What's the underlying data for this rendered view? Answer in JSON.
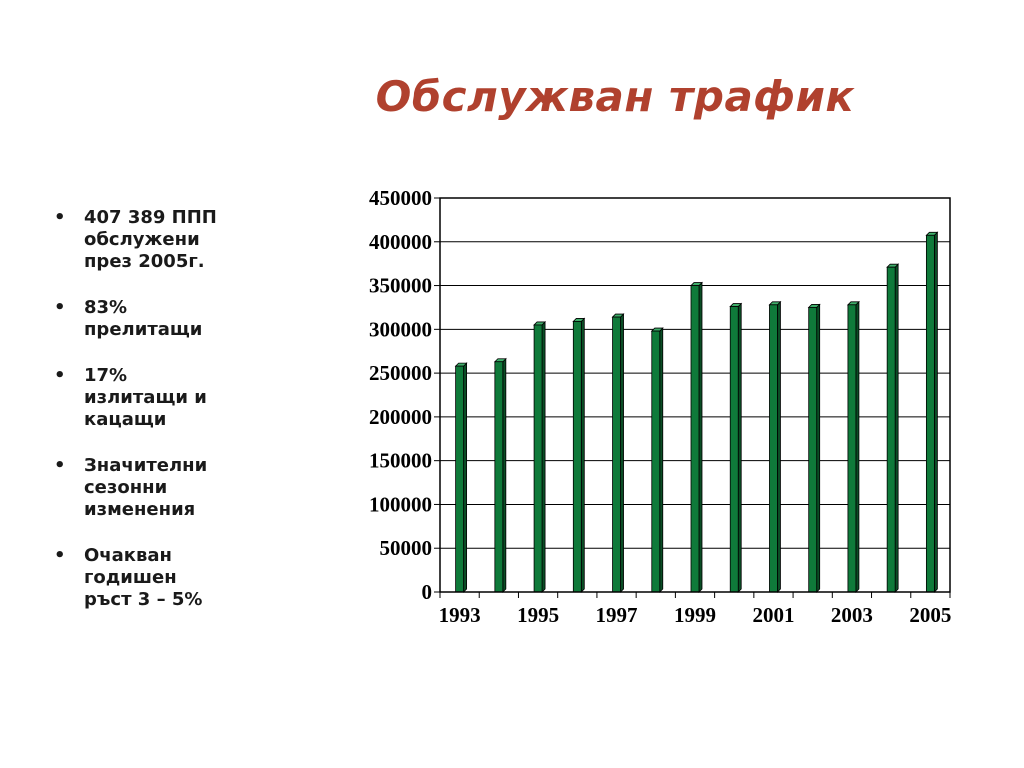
{
  "title": "Обслужван трафик",
  "bullets": [
    "407 389 ППП\nобслужени\nпрез 2005г.",
    "83%\nпрелитащи",
    "17%\nизлитащи и\nкацащи",
    "Значителни\nсезонни\nизменения",
    "Очакван\nгодишен\nръст 3 – 5%"
  ],
  "chart_data": {
    "type": "bar",
    "title": "",
    "xlabel": "",
    "ylabel": "",
    "categories": [
      "1993",
      "1994",
      "1995",
      "1996",
      "1997",
      "1998",
      "1999",
      "2000",
      "2001",
      "2002",
      "2003",
      "2004",
      "2005"
    ],
    "x_tick_labels": [
      "1993",
      "1995",
      "1997",
      "1999",
      "2001",
      "2003",
      "2005"
    ],
    "y_tick_labels": [
      "0",
      "50000",
      "100000",
      "150000",
      "200000",
      "250000",
      "300000",
      "350000",
      "400000",
      "450000"
    ],
    "values": [
      258000,
      263000,
      305000,
      309000,
      314000,
      298000,
      350000,
      326000,
      328000,
      325000,
      328000,
      371000,
      407389
    ],
    "ylim": [
      0,
      450000
    ],
    "grid": true,
    "legend": "none",
    "bar_color": "#0f7a3a"
  }
}
